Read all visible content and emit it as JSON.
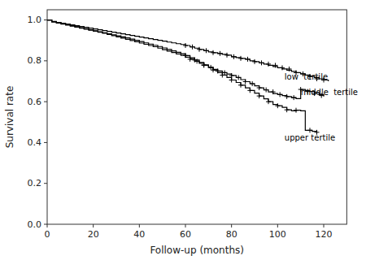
{
  "chart_data": {
    "type": "line",
    "xlabel": "Follow-up (months)",
    "ylabel": "Survival rate",
    "xlim": [
      0,
      130
    ],
    "ylim": [
      0,
      1.05
    ],
    "xticks": [
      0,
      20,
      40,
      60,
      80,
      100,
      120
    ],
    "yticks": [
      {
        "value": 0,
        "label": "0.0"
      },
      0.2,
      0.4,
      0.6,
      0.8,
      {
        "value": 1,
        "label": "1.0"
      }
    ],
    "grid": false,
    "series": [
      {
        "type": "step",
        "color": "#000000",
        "x": [
          0,
          2,
          4,
          6,
          8,
          10,
          12,
          14,
          16,
          18,
          20,
          22,
          24,
          26,
          28,
          30,
          32,
          34,
          36,
          38,
          40,
          42,
          44,
          46,
          48,
          50,
          52,
          54,
          56,
          58,
          60,
          62,
          64,
          66,
          68,
          70,
          72,
          74,
          76,
          78,
          80,
          82,
          84,
          86,
          88,
          90,
          92,
          94,
          96,
          98,
          100,
          102,
          104,
          106,
          108,
          110,
          112,
          114,
          116,
          118,
          120,
          122
        ],
        "values": [
          1.0,
          0.992,
          0.988,
          0.984,
          0.98,
          0.976,
          0.972,
          0.968,
          0.964,
          0.96,
          0.956,
          0.952,
          0.948,
          0.944,
          0.94,
          0.936,
          0.932,
          0.928,
          0.924,
          0.92,
          0.916,
          0.912,
          0.908,
          0.904,
          0.9,
          0.896,
          0.892,
          0.888,
          0.884,
          0.88,
          0.875,
          0.868,
          0.862,
          0.856,
          0.85,
          0.844,
          0.84,
          0.836,
          0.832,
          0.828,
          0.82,
          0.816,
          0.812,
          0.808,
          0.8,
          0.796,
          0.79,
          0.784,
          0.778,
          0.772,
          0.766,
          0.76,
          0.754,
          0.748,
          0.742,
          0.736,
          0.73,
          0.724,
          0.718,
          0.712,
          0.706,
          0.7
        ]
      },
      {
        "type": "scatter",
        "marker": "plus",
        "color": "#000000",
        "x": [
          60,
          63,
          66,
          69,
          72,
          75,
          78,
          81,
          84,
          87,
          90,
          93,
          96,
          99,
          102,
          105,
          108,
          111,
          114,
          117,
          120
        ],
        "values": [
          0.875,
          0.868,
          0.856,
          0.85,
          0.84,
          0.836,
          0.828,
          0.82,
          0.812,
          0.808,
          0.796,
          0.79,
          0.784,
          0.778,
          0.766,
          0.76,
          0.742,
          0.736,
          0.724,
          0.712,
          0.706
        ]
      },
      {
        "type": "step",
        "color": "#000000",
        "x": [
          0,
          2,
          4,
          6,
          8,
          10,
          12,
          14,
          16,
          18,
          20,
          22,
          24,
          26,
          28,
          30,
          32,
          34,
          36,
          38,
          40,
          42,
          44,
          46,
          48,
          50,
          52,
          54,
          56,
          58,
          60,
          62,
          64,
          66,
          68,
          70,
          72,
          74,
          76,
          78,
          80,
          82,
          84,
          86,
          88,
          90,
          92,
          94,
          96,
          98,
          100,
          102,
          104,
          106,
          108,
          110,
          112,
          114,
          116,
          118,
          120
        ],
        "values": [
          1.0,
          0.99,
          0.985,
          0.98,
          0.975,
          0.97,
          0.965,
          0.96,
          0.955,
          0.95,
          0.945,
          0.94,
          0.935,
          0.929,
          0.923,
          0.917,
          0.911,
          0.905,
          0.899,
          0.893,
          0.887,
          0.881,
          0.875,
          0.869,
          0.862,
          0.855,
          0.848,
          0.841,
          0.834,
          0.827,
          0.818,
          0.808,
          0.798,
          0.788,
          0.778,
          0.768,
          0.758,
          0.75,
          0.742,
          0.735,
          0.728,
          0.718,
          0.708,
          0.698,
          0.688,
          0.678,
          0.668,
          0.658,
          0.648,
          0.64,
          0.635,
          0.63,
          0.625,
          0.62,
          0.615,
          0.66,
          0.655,
          0.65,
          0.645,
          0.635,
          0.625
        ]
      },
      {
        "type": "scatter",
        "marker": "plus",
        "color": "#000000",
        "x": [
          62,
          65,
          68,
          71,
          74,
          77,
          80,
          83,
          86,
          89,
          92,
          95,
          98,
          101,
          104,
          107,
          110,
          113,
          116,
          119
        ],
        "values": [
          0.808,
          0.798,
          0.778,
          0.768,
          0.75,
          0.742,
          0.728,
          0.718,
          0.698,
          0.688,
          0.668,
          0.658,
          0.648,
          0.635,
          0.625,
          0.62,
          0.66,
          0.65,
          0.64,
          0.63
        ]
      },
      {
        "type": "step",
        "color": "#000000",
        "x": [
          0,
          2,
          4,
          6,
          8,
          10,
          12,
          14,
          16,
          18,
          20,
          22,
          24,
          26,
          28,
          30,
          32,
          34,
          36,
          38,
          40,
          42,
          44,
          46,
          48,
          50,
          52,
          54,
          56,
          58,
          60,
          62,
          64,
          66,
          68,
          70,
          72,
          74,
          76,
          78,
          80,
          82,
          84,
          86,
          88,
          90,
          92,
          94,
          96,
          98,
          100,
          102,
          104,
          106,
          108,
          110,
          112,
          115,
          117
        ],
        "values": [
          1.0,
          0.993,
          0.987,
          0.982,
          0.977,
          0.972,
          0.967,
          0.962,
          0.957,
          0.952,
          0.947,
          0.942,
          0.937,
          0.932,
          0.927,
          0.922,
          0.917,
          0.912,
          0.906,
          0.9,
          0.894,
          0.888,
          0.882,
          0.876,
          0.87,
          0.863,
          0.856,
          0.849,
          0.842,
          0.835,
          0.826,
          0.815,
          0.804,
          0.792,
          0.78,
          0.768,
          0.755,
          0.742,
          0.73,
          0.718,
          0.706,
          0.694,
          0.681,
          0.668,
          0.655,
          0.642,
          0.628,
          0.614,
          0.6,
          0.586,
          0.58,
          0.572,
          0.56,
          0.555,
          0.558,
          0.555,
          0.46,
          0.455,
          0.45
        ]
      },
      {
        "type": "scatter",
        "marker": "plus",
        "color": "#000000",
        "x": [
          60,
          64,
          68,
          72,
          76,
          80,
          84,
          88,
          92,
          96,
          100,
          104,
          108,
          114,
          117
        ],
        "values": [
          0.826,
          0.804,
          0.78,
          0.755,
          0.73,
          0.706,
          0.681,
          0.655,
          0.628,
          0.6,
          0.58,
          0.56,
          0.558,
          0.46,
          0.45
        ]
      }
    ],
    "annotations": [
      {
        "text": "low  tertile",
        "x": 103,
        "y": 0.72,
        "color": "#000000"
      },
      {
        "text": "middle  tertile",
        "x": 110,
        "y": 0.648,
        "color": "#000000"
      },
      {
        "text": "upper tertile",
        "x": 103,
        "y": 0.425,
        "color": "#000000"
      }
    ]
  }
}
